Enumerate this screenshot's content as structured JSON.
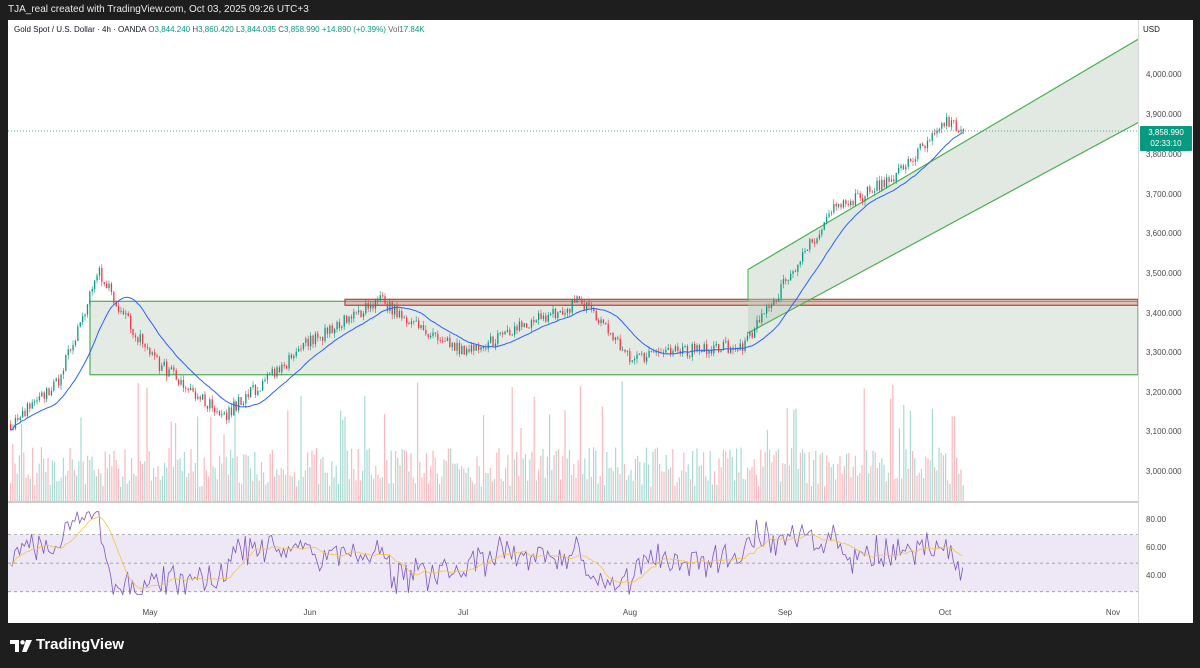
{
  "header": {
    "caption": "TJA_real created with TradingView.com, Oct 03, 2025 09:26 UTC+3"
  },
  "legend": {
    "symbol": "Gold Spot / U.S. Dollar · 4h · OANDA",
    "o_label": "O",
    "o": "3,844.240",
    "h_label": "H",
    "h": "3,860.420",
    "l_label": "L",
    "l": "3,844.035",
    "c_label": "C",
    "c": "3,858.990",
    "change": "+14.890 (+0.39%)",
    "vol_label": "Vol",
    "vol": "17.84K"
  },
  "price_axis": {
    "currency": "USD",
    "ticks": [
      "4,000.000",
      "3,900.000",
      "3,800.000",
      "3,700.000",
      "3,600.000",
      "3,500.000",
      "3,400.000",
      "3,300.000",
      "3,200.000",
      "3,100.000",
      "3,000.000"
    ]
  },
  "last_price": {
    "price": "3,858.990",
    "countdown": "02:33:10"
  },
  "rsi_axis": {
    "ticks": [
      "80.00",
      "60.00",
      "40.00"
    ]
  },
  "time_axis": {
    "ticks": [
      "May",
      "Jun",
      "Jul",
      "Aug",
      "Sep",
      "Oct",
      "Nov"
    ]
  },
  "footer": {
    "brand": "TradingView"
  },
  "colors": {
    "up": "#089981",
    "down": "#f23645",
    "ma": "#2962ff",
    "channel": "#4caf50",
    "resistance": "#b2443b",
    "rsi": "#7e57c2",
    "rsi_ma": "#f5c542"
  },
  "chart_data": {
    "type": "candlestick",
    "symbol": "XAUUSD",
    "timeframe": "4h",
    "last_close": 3858.99,
    "ylim": [
      2960,
      4080
    ],
    "x_ticks": [
      "May",
      "Jun",
      "Jul",
      "Aug",
      "Sep",
      "Oct",
      "Nov"
    ],
    "price_path_approx": {
      "points": [
        {
          "t": "Apr-start",
          "price": 3120
        },
        {
          "t": "Apr-mid",
          "price": 3230
        },
        {
          "t": "Apr-22",
          "price": 3500
        },
        {
          "t": "May-01",
          "price": 3290
        },
        {
          "t": "May-15",
          "price": 3140
        },
        {
          "t": "Jun-01",
          "price": 3330
        },
        {
          "t": "Jun-15",
          "price": 3430
        },
        {
          "t": "Jul-01",
          "price": 3300
        },
        {
          "t": "Jul-23",
          "price": 3430
        },
        {
          "t": "Aug-01",
          "price": 3290
        },
        {
          "t": "Aug-20",
          "price": 3320
        },
        {
          "t": "Sep-01",
          "price": 3480
        },
        {
          "t": "Sep-10",
          "price": 3660
        },
        {
          "t": "Sep-22",
          "price": 3740
        },
        {
          "t": "Oct-01",
          "price": 3890
        },
        {
          "t": "Oct-03",
          "price": 3858.99
        }
      ]
    },
    "annotations": {
      "range_box": {
        "top": 3430,
        "bottom": 3245
      },
      "resistance_zone": {
        "top": 3435,
        "bottom": 3420
      },
      "rising_channel": {
        "start": "late-Aug",
        "start_lower": 3350,
        "start_upper": 3510,
        "end": "mid-Oct",
        "end_lower": 3880,
        "end_upper": 4090
      }
    },
    "rsi": {
      "levels": [
        70,
        50,
        30
      ],
      "range": [
        20,
        90
      ]
    }
  }
}
